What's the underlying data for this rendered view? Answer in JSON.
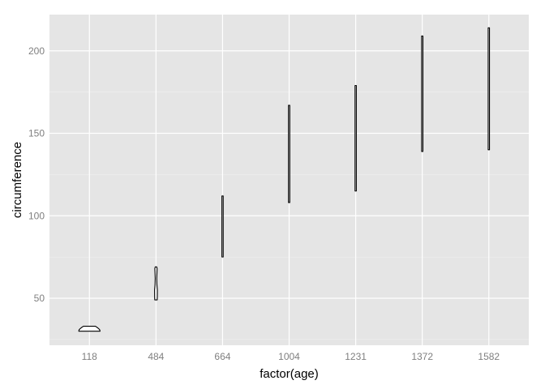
{
  "chart_data": {
    "type": "violin",
    "title": "",
    "xlabel": "factor(age)",
    "ylabel": "circumference",
    "categories": [
      "118",
      "484",
      "664",
      "1004",
      "1231",
      "1372",
      "1582"
    ],
    "ylim": [
      21.5,
      222
    ],
    "yticks": [
      50,
      100,
      150,
      200
    ],
    "y_minor_ticks": [
      25,
      75,
      125,
      175
    ],
    "violins": [
      {
        "category": "118",
        "min": 30,
        "max": 33,
        "max_halfwidth": 35.6,
        "profile": [
          [
            30,
            35.6
          ],
          [
            31,
            34
          ],
          [
            32,
            28
          ],
          [
            33,
            20
          ]
        ]
      },
      {
        "category": "484",
        "min": 49,
        "max": 69,
        "max_halfwidth": 4.7,
        "profile": [
          [
            49,
            4
          ],
          [
            50,
            4.4
          ],
          [
            55,
            4.7
          ],
          [
            58,
            3.2
          ],
          [
            62,
            2.6
          ],
          [
            66,
            3.4
          ],
          [
            68,
            3.9
          ],
          [
            69,
            2.5
          ]
        ]
      },
      {
        "category": "664",
        "min": 75,
        "max": 112,
        "max_halfwidth": 2.0,
        "profile": [
          [
            75,
            2.0
          ],
          [
            80,
            2.0
          ],
          [
            92,
            1.7
          ],
          [
            100,
            1.4
          ],
          [
            112,
            1.5
          ]
        ]
      },
      {
        "category": "1004",
        "min": 108,
        "max": 167,
        "max_halfwidth": 2.1,
        "profile": [
          [
            108,
            2.1
          ],
          [
            115,
            1.7
          ],
          [
            125,
            1.6
          ],
          [
            140,
            1.2
          ],
          [
            155,
            1.2
          ],
          [
            165,
            1.6
          ],
          [
            167,
            1.2
          ]
        ]
      },
      {
        "category": "1231",
        "min": 115,
        "max": 179,
        "max_halfwidth": 1.8,
        "profile": [
          [
            115,
            1.8
          ],
          [
            130,
            1.4
          ],
          [
            145,
            1.1
          ],
          [
            160,
            1.1
          ],
          [
            170,
            1.6
          ],
          [
            179,
            1.2
          ]
        ]
      },
      {
        "category": "1372",
        "min": 139,
        "max": 209,
        "max_halfwidth": 1.5,
        "profile": [
          [
            139,
            1.5
          ],
          [
            160,
            1.2
          ],
          [
            180,
            1.2
          ],
          [
            200,
            1.3
          ],
          [
            209,
            1.1
          ]
        ]
      },
      {
        "category": "1582",
        "min": 140,
        "max": 214,
        "max_halfwidth": 1.4,
        "profile": [
          [
            140,
            1.4
          ],
          [
            160,
            1.1
          ],
          [
            180,
            1.1
          ],
          [
            200,
            1.2
          ],
          [
            214,
            1.1
          ]
        ]
      }
    ],
    "colors": {
      "panel_background": "#e5e5e5",
      "grid_major": "#ffffff",
      "grid_minor": "#f2f2f2",
      "violin_fill": "#ffffff",
      "violin_outline": "#000000",
      "tick_label": "#7f7f7f",
      "axis_title": "#000000"
    }
  }
}
